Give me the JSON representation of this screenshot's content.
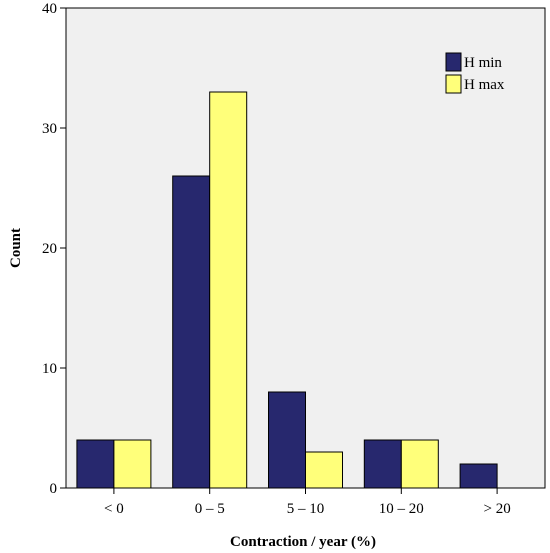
{
  "chart_data": {
    "type": "bar",
    "categories": [
      "< 0",
      "0 – 5",
      "5 – 10",
      "10 – 20",
      "> 20"
    ],
    "series": [
      {
        "name": "H min",
        "values": [
          4,
          26,
          8,
          4,
          2
        ],
        "color": "#27286e"
      },
      {
        "name": "H max",
        "values": [
          4,
          33,
          3,
          4,
          0
        ],
        "color": "#ffff7a"
      }
    ],
    "xlabel": "Contraction / year (%)",
    "ylabel": "Count",
    "ylim": [
      0,
      40
    ],
    "yticks": [
      0,
      10,
      20,
      30,
      40
    ],
    "grid": false,
    "legend_position": "top-right",
    "plot_background": "#f0f0f0",
    "bar_outline": "#000000"
  }
}
